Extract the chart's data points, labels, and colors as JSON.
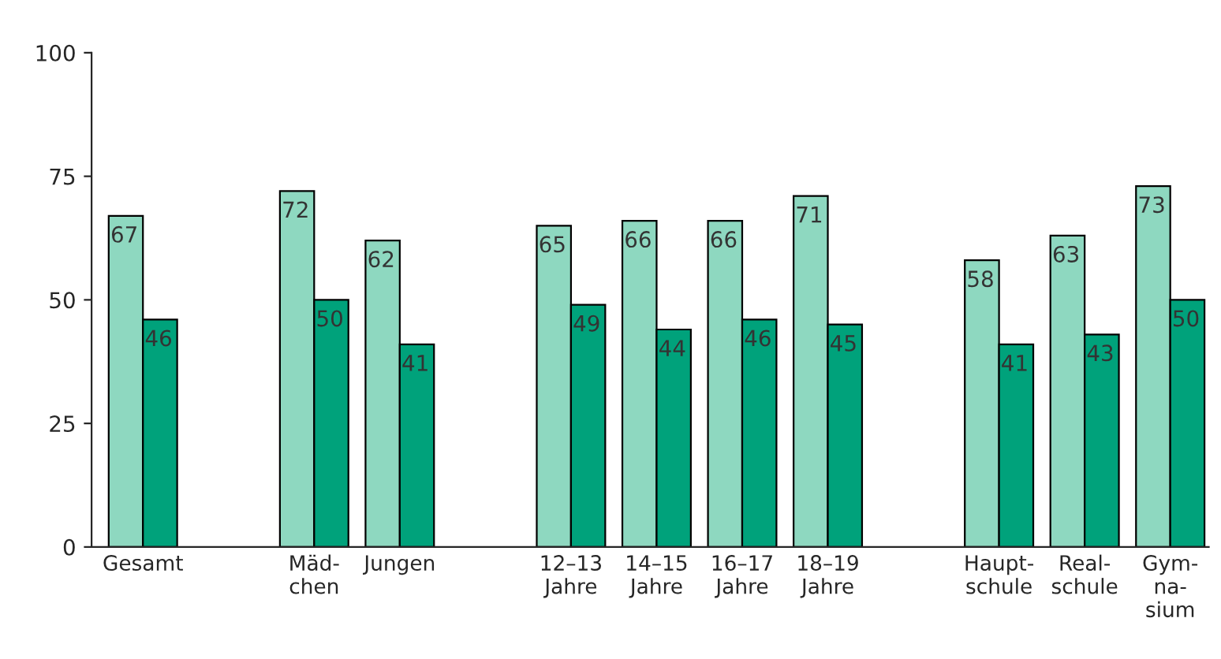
{
  "chart_data": {
    "type": "bar",
    "categories": [
      "Gesamt",
      null,
      "Mäd-\nchen",
      "Jungen",
      null,
      "12–13\nJahre",
      "14–15\nJahre",
      "16–17\nJahre",
      "18–19\nJahre",
      null,
      "Haupt-\nschule",
      "Real-\nschule",
      "Gym-\nna-\nsium"
    ],
    "series": [
      {
        "color": "#8ed8c0",
        "values": [
          67,
          null,
          72,
          62,
          null,
          65,
          66,
          66,
          71,
          null,
          58,
          63,
          73
        ]
      },
      {
        "color": "#00a27b",
        "values": [
          46,
          null,
          50,
          41,
          null,
          49,
          44,
          46,
          45,
          null,
          41,
          43,
          50
        ]
      }
    ],
    "ylim": [
      0,
      100
    ],
    "yticks": [
      0,
      25,
      50,
      75,
      100
    ],
    "grid": false,
    "data_labels": true
  }
}
